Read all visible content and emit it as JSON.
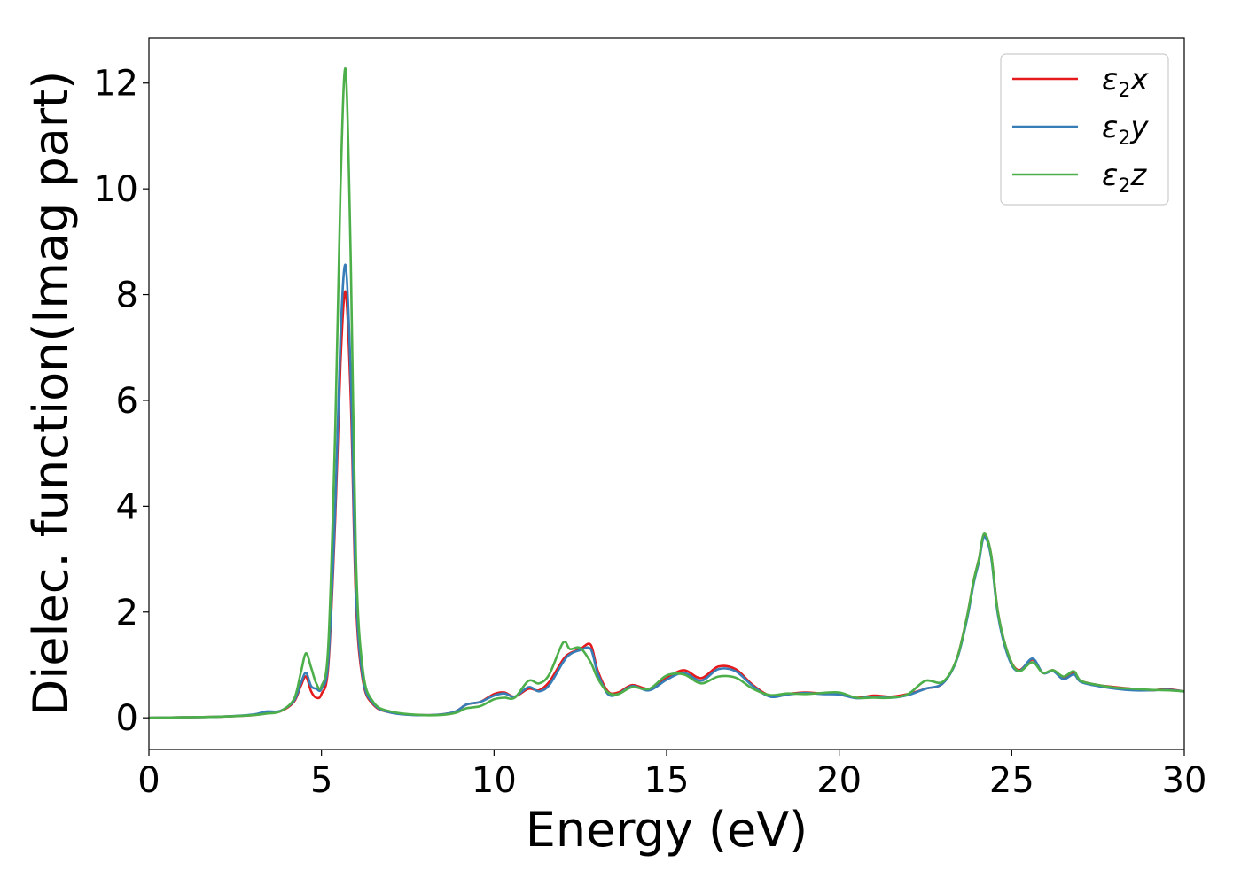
{
  "chart_data": {
    "type": "line",
    "xlabel": "Energy (eV)",
    "ylabel": "Dielec. function(Imag part)",
    "xlim": [
      0,
      30
    ],
    "ylim": [
      -0.6,
      12.85
    ],
    "xticks": [
      0,
      5,
      10,
      15,
      20,
      25,
      30
    ],
    "yticks": [
      0,
      2,
      4,
      6,
      8,
      10,
      12
    ],
    "grid": false,
    "legend_position": "top-right",
    "series": [
      {
        "name": "ε2x",
        "legend_base": "ε",
        "legend_sub": "2",
        "legend_suffix": "x",
        "color": "#e41a1c",
        "x": [
          0,
          1,
          2,
          3,
          3.4,
          3.8,
          4.2,
          4.4,
          4.55,
          4.7,
          4.85,
          5.0,
          5.2,
          5.4,
          5.55,
          5.7,
          5.85,
          6.0,
          6.2,
          6.5,
          7,
          8,
          8.8,
          9.2,
          9.6,
          10.0,
          10.3,
          10.6,
          11.0,
          11.3,
          11.6,
          12.0,
          12.2,
          12.5,
          12.8,
          13.0,
          13.3,
          13.6,
          14.0,
          14.5,
          15.0,
          15.5,
          16.0,
          16.5,
          17.0,
          17.5,
          18.0,
          18.5,
          19.0,
          19.5,
          20.0,
          20.5,
          21.0,
          21.5,
          22.0,
          22.5,
          23.0,
          23.4,
          23.7,
          23.9,
          24.05,
          24.2,
          24.4,
          24.6,
          24.9,
          25.2,
          25.6,
          25.9,
          26.2,
          26.5,
          26.8,
          27.0,
          27.5,
          28.0,
          28.5,
          29.0,
          29.5,
          30.0
        ],
        "values": [
          0,
          0.01,
          0.02,
          0.05,
          0.09,
          0.12,
          0.3,
          0.6,
          0.78,
          0.5,
          0.38,
          0.45,
          1.0,
          3.8,
          6.7,
          8.05,
          6.0,
          2.2,
          0.7,
          0.25,
          0.1,
          0.05,
          0.1,
          0.25,
          0.3,
          0.45,
          0.48,
          0.4,
          0.55,
          0.52,
          0.68,
          1.1,
          1.22,
          1.3,
          1.38,
          0.9,
          0.5,
          0.48,
          0.62,
          0.55,
          0.75,
          0.9,
          0.75,
          0.97,
          0.92,
          0.62,
          0.42,
          0.45,
          0.48,
          0.46,
          0.45,
          0.38,
          0.42,
          0.4,
          0.45,
          0.55,
          0.65,
          1.1,
          1.9,
          2.6,
          3.0,
          3.45,
          3.1,
          2.0,
          1.2,
          0.9,
          1.1,
          0.85,
          0.9,
          0.75,
          0.85,
          0.7,
          0.62,
          0.58,
          0.55,
          0.52,
          0.54,
          0.5
        ]
      },
      {
        "name": "ε2y",
        "legend_base": "ε",
        "legend_sub": "2",
        "legend_suffix": "y",
        "color": "#377eb8",
        "x": [
          0,
          1,
          2,
          3,
          3.4,
          3.8,
          4.2,
          4.4,
          4.55,
          4.7,
          4.85,
          5.0,
          5.2,
          5.4,
          5.55,
          5.7,
          5.85,
          6.0,
          6.2,
          6.5,
          7,
          8,
          8.8,
          9.2,
          9.6,
          10.0,
          10.3,
          10.6,
          11.0,
          11.3,
          11.6,
          12.0,
          12.2,
          12.5,
          12.8,
          13.0,
          13.3,
          13.6,
          14.0,
          14.5,
          15.0,
          15.5,
          16.0,
          16.5,
          17.0,
          17.5,
          18.0,
          18.5,
          19.0,
          19.5,
          20.0,
          20.5,
          21.0,
          21.5,
          22.0,
          22.5,
          23.0,
          23.4,
          23.7,
          23.9,
          24.05,
          24.2,
          24.4,
          24.6,
          24.9,
          25.2,
          25.6,
          25.9,
          26.2,
          26.5,
          26.8,
          27.0,
          27.5,
          28.0,
          28.5,
          29.0,
          29.5,
          30.0
        ],
        "values": [
          0,
          0.01,
          0.02,
          0.06,
          0.12,
          0.13,
          0.32,
          0.65,
          0.85,
          0.6,
          0.55,
          0.55,
          1.1,
          4.0,
          7.2,
          8.55,
          6.4,
          2.4,
          0.75,
          0.27,
          0.1,
          0.05,
          0.1,
          0.25,
          0.3,
          0.42,
          0.46,
          0.4,
          0.58,
          0.5,
          0.62,
          1.05,
          1.2,
          1.28,
          1.3,
          0.85,
          0.45,
          0.45,
          0.6,
          0.52,
          0.72,
          0.85,
          0.7,
          0.92,
          0.88,
          0.6,
          0.4,
          0.44,
          0.47,
          0.45,
          0.44,
          0.37,
          0.4,
          0.38,
          0.43,
          0.55,
          0.65,
          1.08,
          1.85,
          2.55,
          2.95,
          3.42,
          3.05,
          1.95,
          1.15,
          0.88,
          1.12,
          0.85,
          0.88,
          0.73,
          0.82,
          0.68,
          0.6,
          0.55,
          0.52,
          0.52,
          0.53,
          0.5
        ]
      },
      {
        "name": "ε2z",
        "legend_base": "ε",
        "legend_sub": "2",
        "legend_suffix": "z",
        "color": "#4daf4a",
        "x": [
          0,
          1,
          2,
          3,
          3.4,
          3.8,
          4.2,
          4.4,
          4.55,
          4.7,
          4.85,
          5.0,
          5.2,
          5.4,
          5.55,
          5.7,
          5.85,
          6.0,
          6.2,
          6.5,
          7,
          8,
          8.8,
          9.2,
          9.6,
          10.0,
          10.3,
          10.6,
          11.0,
          11.3,
          11.6,
          12.0,
          12.2,
          12.5,
          12.8,
          13.0,
          13.3,
          13.6,
          14.0,
          14.5,
          15.0,
          15.5,
          16.0,
          16.5,
          17.0,
          17.5,
          18.0,
          18.5,
          19.0,
          19.5,
          20.0,
          20.5,
          21.0,
          21.5,
          22.0,
          22.5,
          23.0,
          23.4,
          23.7,
          23.9,
          24.05,
          24.2,
          24.4,
          24.6,
          24.9,
          25.2,
          25.6,
          25.9,
          26.2,
          26.5,
          26.8,
          27.0,
          27.5,
          28.0,
          28.5,
          29.0,
          29.5,
          30.0
        ],
        "values": [
          0,
          0.01,
          0.02,
          0.05,
          0.08,
          0.12,
          0.35,
          0.85,
          1.22,
          0.95,
          0.65,
          0.6,
          1.4,
          5.5,
          10.0,
          12.25,
          8.6,
          3.0,
          0.9,
          0.3,
          0.12,
          0.05,
          0.08,
          0.18,
          0.22,
          0.35,
          0.38,
          0.38,
          0.7,
          0.65,
          0.82,
          1.42,
          1.3,
          1.32,
          1.05,
          0.75,
          0.48,
          0.45,
          0.58,
          0.55,
          0.8,
          0.82,
          0.65,
          0.78,
          0.76,
          0.55,
          0.43,
          0.46,
          0.45,
          0.47,
          0.48,
          0.38,
          0.38,
          0.38,
          0.45,
          0.7,
          0.68,
          1.1,
          1.9,
          2.6,
          3.0,
          3.48,
          3.1,
          2.0,
          1.2,
          0.88,
          1.05,
          0.85,
          0.9,
          0.78,
          0.88,
          0.7,
          0.62,
          0.57,
          0.55,
          0.53,
          0.52,
          0.5
        ]
      }
    ]
  }
}
